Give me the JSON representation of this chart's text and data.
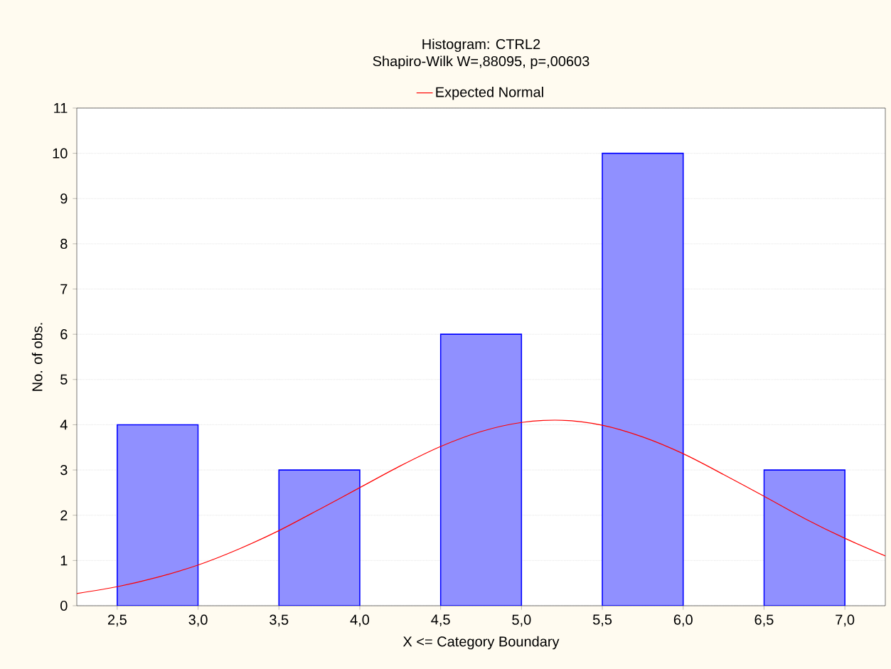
{
  "chart_data": {
    "type": "histogram",
    "title": "Histogram: CTRL2",
    "subtitle": "Shapiro-Wilk W=,88095, p=,00603",
    "xlabel": "X <= Category Boundary",
    "ylabel": "No. of obs.",
    "bins": [
      2.5,
      3.0,
      3.5,
      4.0,
      4.5,
      5.0,
      5.5,
      6.0,
      6.5,
      7.0
    ],
    "series": [
      {
        "color": "#9090ff",
        "values": [
          4,
          0,
          3,
          0,
          6,
          0,
          10,
          0,
          3
        ]
      },
      {
        "type": "line",
        "name": "Expected Normal",
        "color": "#ff0000",
        "x": [
          2.25,
          2.5,
          2.75,
          3.0,
          3.25,
          3.5,
          3.75,
          4.0,
          4.25,
          4.5,
          4.75,
          5.0,
          5.25,
          5.5,
          5.75,
          6.0,
          6.25,
          6.5,
          6.75,
          7.0,
          7.25
        ],
        "values": [
          0.27,
          0.42,
          0.63,
          0.9,
          1.25,
          1.66,
          2.13,
          2.61,
          3.09,
          3.52,
          3.85,
          4.05,
          4.1,
          3.99,
          3.73,
          3.36,
          2.9,
          2.42,
          1.93,
          1.49,
          1.1
        ]
      }
    ],
    "xlim": [
      2.25,
      7.25
    ],
    "ylim": [
      0,
      11
    ],
    "xticks": [
      {
        "value": 2.5,
        "label": "2,5"
      },
      {
        "value": 3.0,
        "label": "3,0"
      },
      {
        "value": 3.5,
        "label": "3,5"
      },
      {
        "value": 4.0,
        "label": "4,0"
      },
      {
        "value": 4.5,
        "label": "4,5"
      },
      {
        "value": 5.0,
        "label": "5,0"
      },
      {
        "value": 5.5,
        "label": "5,5"
      },
      {
        "value": 6.0,
        "label": "6,0"
      },
      {
        "value": 6.5,
        "label": "6,5"
      },
      {
        "value": 7.0,
        "label": "7,0"
      }
    ],
    "yticks": [
      0,
      1,
      2,
      3,
      4,
      5,
      6,
      7,
      8,
      9,
      10,
      11
    ],
    "grid": "y",
    "legend": "top"
  }
}
